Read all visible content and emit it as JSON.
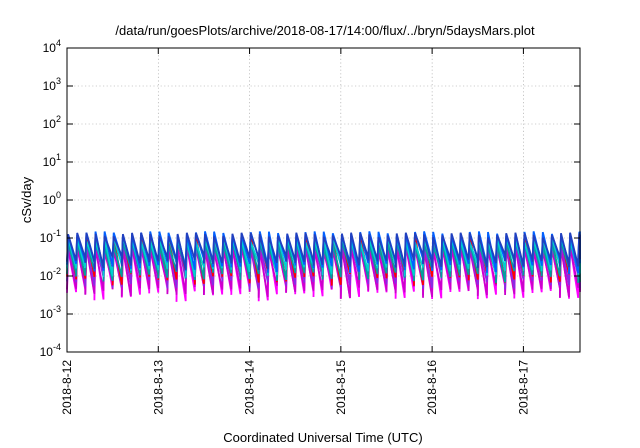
{
  "chart_data": {
    "type": "line",
    "title": "/data/run/goesPlots/archive/2018-08-17/14:00/flux/../bryn/5daysMars.plot",
    "xlabel": "Coordinated Universal Time (UTC)",
    "ylabel": "cSv/day",
    "x_range_days": [
      0,
      5.62
    ],
    "ylim_exp": [
      -4,
      4
    ],
    "yscale": "log",
    "grid": true,
    "legend": "none",
    "x_ticks": [
      {
        "day": 0,
        "label": "2018-8-12"
      },
      {
        "day": 1,
        "label": "2018-8-13"
      },
      {
        "day": 2,
        "label": "2018-8-14"
      },
      {
        "day": 3,
        "label": "2018-8-15"
      },
      {
        "day": 4,
        "label": "2018-8-16"
      },
      {
        "day": 5,
        "label": "2018-8-17"
      }
    ],
    "y_ticks": [
      {
        "exp": -4,
        "base": "10",
        "sup": "-4"
      },
      {
        "exp": -3,
        "base": "10",
        "sup": "-3"
      },
      {
        "exp": -2,
        "base": "10",
        "sup": "-2"
      },
      {
        "exp": -1,
        "base": "10",
        "sup": "-1"
      },
      {
        "exp": 0,
        "base": "10",
        "sup": "0"
      },
      {
        "exp": 1,
        "base": "10",
        "sup": "1"
      },
      {
        "exp": 2,
        "base": "10",
        "sup": "2"
      },
      {
        "exp": 3,
        "base": "10",
        "sup": "3"
      },
      {
        "exp": 4,
        "base": "10",
        "sup": "4"
      }
    ],
    "cycle_period_days": 0.1,
    "series": [
      {
        "color": "#ff00ff",
        "peak": 0.06,
        "trough": 0.0045
      },
      {
        "color": "#cc00cc",
        "peak": 0.05,
        "trough": 0.0055
      },
      {
        "color": "#8a2be2",
        "peak": 0.08,
        "trough": 0.009
      },
      {
        "color": "#ff0000",
        "peak": 0.11,
        "trough": 0.012
      },
      {
        "color": "#00a0a0",
        "peak": 0.07,
        "trough": 0.014
      },
      {
        "color": "#00d0d0",
        "peak": 0.09,
        "trough": 0.02
      },
      {
        "color": "#0060ff",
        "peak": 0.13,
        "trough": 0.025
      },
      {
        "color": "#2040c0",
        "peak": 0.12,
        "trough": 0.03
      }
    ]
  }
}
